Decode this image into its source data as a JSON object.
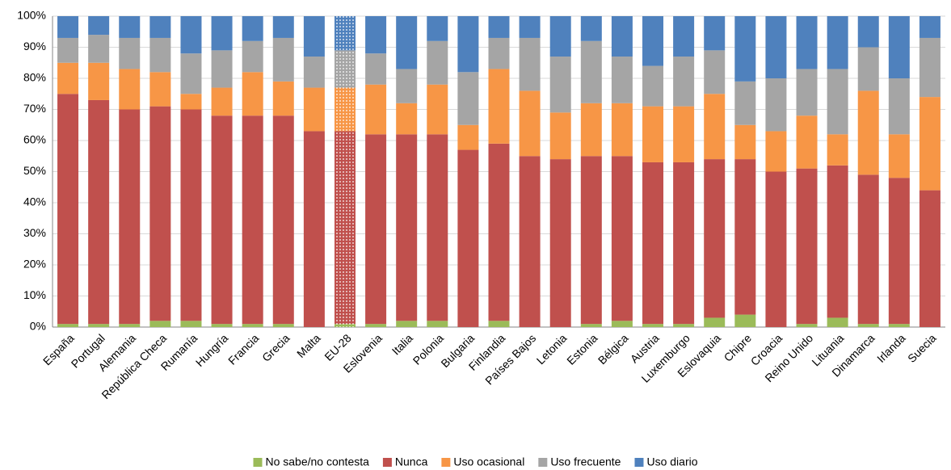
{
  "chart_data": {
    "type": "stacked_bar",
    "categories": [
      "España",
      "Portugal",
      "Alemania",
      "República Checa",
      "Rumanía",
      "Hungría",
      "Francia",
      "Grecia",
      "Malta",
      "EU-28",
      "Eslovenia",
      "Italia",
      "Polonia",
      "Bulgaria",
      "Finlandia",
      "Países Bajos",
      "Letonia",
      "Estonia",
      "Bélgica",
      "Austria",
      "Luxemburgo",
      "Eslovaquia",
      "Chipre",
      "Croacia",
      "Reino Unido",
      "Lituania",
      "Dinamarca",
      "Irlanda",
      "Suecia"
    ],
    "series": [
      {
        "name": "No sabe/no contesta",
        "color": "#9bbb59",
        "values": [
          1,
          1,
          1,
          2,
          2,
          1,
          1,
          1,
          0,
          1,
          1,
          2,
          2,
          0,
          2,
          0,
          0,
          1,
          2,
          1,
          1,
          3,
          4,
          0,
          1,
          3,
          1,
          1,
          0
        ]
      },
      {
        "name": "Nunca",
        "color": "#c0504d",
        "values": [
          74,
          72,
          69,
          69,
          68,
          67,
          67,
          67,
          63,
          62,
          61,
          60,
          60,
          57,
          57,
          55,
          54,
          54,
          53,
          52,
          52,
          51,
          50,
          50,
          50,
          49,
          48,
          47,
          44
        ]
      },
      {
        "name": "Uso ocasional",
        "color": "#f79646",
        "values": [
          10,
          12,
          13,
          11,
          5,
          9,
          14,
          11,
          14,
          14,
          16,
          10,
          16,
          8,
          24,
          21,
          15,
          17,
          17,
          18,
          18,
          21,
          11,
          13,
          17,
          10,
          27,
          14,
          30
        ]
      },
      {
        "name": "Uso frecuente",
        "color": "#a5a5a5",
        "values": [
          8,
          9,
          10,
          11,
          13,
          12,
          10,
          14,
          10,
          12,
          10,
          11,
          14,
          17,
          10,
          17,
          18,
          20,
          15,
          13,
          16,
          14,
          14,
          17,
          15,
          21,
          14,
          18,
          19
        ]
      },
      {
        "name": "Uso diario",
        "color": "#4f81bd",
        "values": [
          7,
          6,
          7,
          7,
          12,
          11,
          8,
          7,
          13,
          11,
          12,
          17,
          8,
          18,
          7,
          7,
          13,
          8,
          13,
          16,
          13,
          11,
          21,
          20,
          17,
          17,
          10,
          20,
          7
        ]
      }
    ],
    "ylim": [
      0,
      100
    ],
    "yticks": [
      {
        "value": 0,
        "label": "0%"
      },
      {
        "value": 10,
        "label": "10%"
      },
      {
        "value": 20,
        "label": "20%"
      },
      {
        "value": 30,
        "label": "30%"
      },
      {
        "value": 40,
        "label": "40%"
      },
      {
        "value": 50,
        "label": "50%"
      },
      {
        "value": 60,
        "label": "60%"
      },
      {
        "value": 70,
        "label": "70%"
      },
      {
        "value": 80,
        "label": "80%"
      },
      {
        "value": 90,
        "label": "90%"
      },
      {
        "value": 100,
        "label": "100%"
      }
    ],
    "grid": true,
    "legend": "bottom",
    "highlight": "EU-28"
  }
}
